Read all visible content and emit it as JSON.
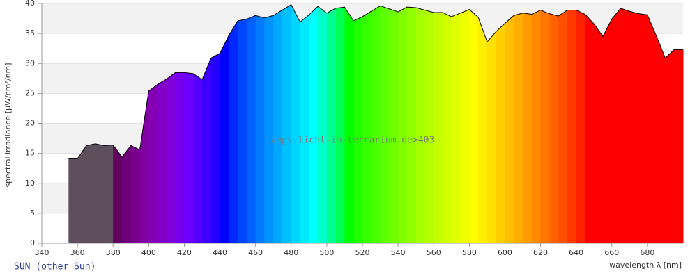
{
  "chart_data": {
    "type": "spectrum",
    "y_label": "spectral irradiance [µW/cm²/nm]",
    "x_label": "wavelength λ [nm]",
    "caption": "SUN (other Sun)",
    "watermark": "lamps.licht-im-terrarium.de>403",
    "x": [
      355,
      360,
      365,
      370,
      375,
      380,
      385,
      390,
      395,
      400,
      405,
      410,
      415,
      420,
      425,
      430,
      435,
      440,
      445,
      450,
      455,
      460,
      465,
      470,
      475,
      480,
      485,
      490,
      495,
      500,
      505,
      510,
      515,
      520,
      525,
      530,
      535,
      540,
      545,
      550,
      555,
      560,
      565,
      570,
      575,
      580,
      585,
      590,
      595,
      600,
      605,
      610,
      615,
      620,
      625,
      630,
      635,
      640,
      645,
      650,
      655,
      660,
      665,
      670,
      675,
      680,
      685,
      690,
      695,
      700
    ],
    "series": [
      {
        "values": [
          14.1,
          14.1,
          16.3,
          16.6,
          16.3,
          16.4,
          14.4,
          16.3,
          15.6,
          25.4,
          26.5,
          27.4,
          28.5,
          28.5,
          28.3,
          27.3,
          30.9,
          31.7,
          34.7,
          37.1,
          37.4,
          38.0,
          37.6,
          38.0,
          38.9,
          39.8,
          36.9,
          38.1,
          39.5,
          38.4,
          39.2,
          39.4,
          37.1,
          37.8,
          38.7,
          39.6,
          39.1,
          38.6,
          39.4,
          39.3,
          38.9,
          38.5,
          38.5,
          37.8,
          38.4,
          39.0,
          37.7,
          33.6,
          35.3,
          36.7,
          38.0,
          38.4,
          38.2,
          38.9,
          38.3,
          37.9,
          38.9,
          38.9,
          38.2,
          36.6,
          34.5,
          37.4,
          39.2,
          38.7,
          38.3,
          38.1,
          34.6,
          30.9,
          32.3,
          32.3
        ]
      }
    ],
    "color_mode": "wavelength",
    "uv_color": "#5e4f5e",
    "outline_color": "#000000",
    "xlim": [
      340,
      700
    ],
    "xticks": [
      340,
      360,
      380,
      400,
      420,
      440,
      460,
      480,
      500,
      520,
      540,
      560,
      580,
      600,
      620,
      640,
      660,
      680
    ],
    "ylim": [
      0,
      40
    ],
    "yticks": [
      0,
      5,
      10,
      15,
      20,
      25,
      30,
      35,
      40
    ],
    "grid": true
  }
}
